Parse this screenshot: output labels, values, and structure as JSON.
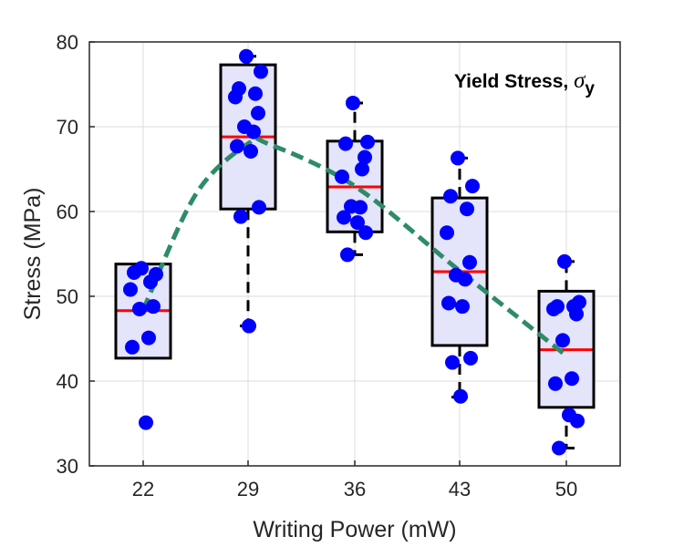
{
  "chart_data": {
    "type": "box",
    "annotation": {
      "text": "Yield Stress, ",
      "symbol": "σ",
      "subscript": "y"
    },
    "xlabel": "Writing Power (mW)",
    "ylabel": "Stress (MPa)",
    "categories": [
      "22",
      "29",
      "36",
      "43",
      "50"
    ],
    "ylim": [
      30,
      80
    ],
    "yticks": [
      "30",
      "40",
      "50",
      "60",
      "70",
      "80"
    ],
    "grid": true,
    "colors": {
      "box_fill": "#e4e4fa",
      "box_edge": "#000000",
      "median": "#ff0000",
      "points": "#0000ff",
      "trend": "#2e8b6a"
    },
    "boxes": [
      {
        "category": "22",
        "q1": 42.7,
        "median": 48.3,
        "q3": 53.8,
        "whisker_low": 42.7,
        "whisker_high": 53.8
      },
      {
        "category": "29",
        "q1": 60.3,
        "median": 68.8,
        "q3": 77.3,
        "whisker_low": 46.5,
        "whisker_high": 78.3
      },
      {
        "category": "36",
        "q1": 57.6,
        "median": 62.9,
        "q3": 68.3,
        "whisker_low": 54.9,
        "whisker_high": 72.8
      },
      {
        "category": "43",
        "q1": 44.2,
        "median": 52.9,
        "q3": 61.6,
        "whisker_low": 38.1,
        "whisker_high": 66.3
      },
      {
        "category": "50",
        "q1": 36.9,
        "median": 43.7,
        "q3": 50.6,
        "whisker_low": 32.1,
        "whisker_high": 54.1
      }
    ],
    "points": [
      {
        "category": "22",
        "values": [
          53.3,
          52.6,
          52.8,
          51.7,
          50.8,
          48.8,
          48.5,
          45.1,
          44.0,
          35.1
        ]
      },
      {
        "category": "29",
        "values": [
          78.3,
          76.5,
          74.5,
          73.9,
          73.5,
          71.6,
          70.0,
          69.4,
          67.7,
          67.1,
          60.5,
          59.4,
          46.5
        ]
      },
      {
        "category": "36",
        "values": [
          72.8,
          68.2,
          68.0,
          65.0,
          64.1,
          66.4,
          60.6,
          60.5,
          59.3,
          58.7,
          57.5,
          54.9
        ]
      },
      {
        "category": "43",
        "values": [
          66.3,
          63.0,
          61.8,
          60.3,
          57.5,
          54.0,
          52.5,
          52.0,
          49.2,
          48.8,
          42.7,
          42.2,
          38.2
        ]
      },
      {
        "category": "50",
        "values": [
          54.1,
          49.3,
          48.8,
          48.8,
          48.5,
          47.9,
          44.8,
          40.3,
          39.7,
          36.0,
          35.3,
          32.1
        ]
      }
    ],
    "trend": {
      "style": "dashed",
      "x": [
        22,
        25.5,
        29,
        30.3,
        36,
        43,
        50
      ],
      "y": [
        48.4,
        62,
        68,
        68,
        63,
        53,
        43
      ]
    }
  }
}
